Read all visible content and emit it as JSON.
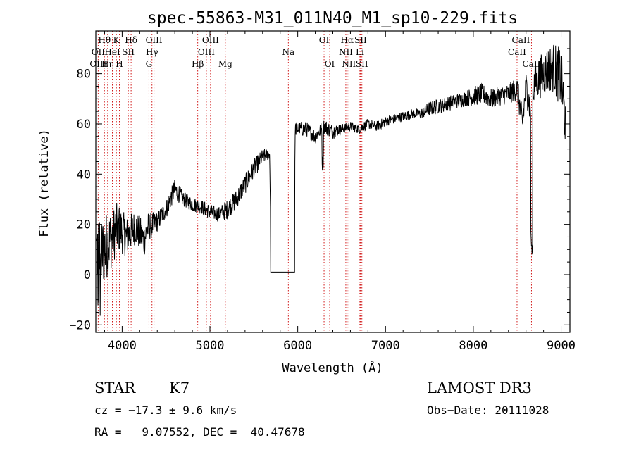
{
  "colors": {
    "spectrum": "#000000",
    "line_marker": "#cc0000",
    "axes": "#000000"
  },
  "chart_data": {
    "type": "line",
    "title": "spec-55863-M31_011N40_M1_sp10-229.fits",
    "xlabel": "Wavelength (Å)",
    "ylabel": "Flux (relative)",
    "xlim": [
      3700,
      9100
    ],
    "ylim": [
      -23,
      97
    ],
    "xticks": [
      4000,
      5000,
      6000,
      7000,
      8000,
      9000
    ],
    "yticks": [
      -20,
      0,
      20,
      40,
      60,
      80
    ],
    "grid": false,
    "spectrum_knots": [
      [
        3700,
        10,
        14
      ],
      [
        3760,
        8,
        15
      ],
      [
        3850,
        13,
        13
      ],
      [
        3950,
        19,
        10
      ],
      [
        4050,
        15,
        8
      ],
      [
        4150,
        19,
        7
      ],
      [
        4250,
        14,
        7
      ],
      [
        4300,
        19,
        6
      ],
      [
        4400,
        21,
        4
      ],
      [
        4500,
        26,
        4
      ],
      [
        4600,
        34,
        4
      ],
      [
        4700,
        30,
        3
      ],
      [
        4800,
        28,
        3
      ],
      [
        4900,
        27,
        3
      ],
      [
        5000,
        25,
        3
      ],
      [
        5100,
        24,
        3
      ],
      [
        5200,
        26,
        4
      ],
      [
        5300,
        30,
        4
      ],
      [
        5400,
        36,
        4
      ],
      [
        5500,
        42,
        4
      ],
      [
        5600,
        47,
        3
      ],
      [
        5680,
        48,
        2
      ],
      [
        5700,
        1,
        0
      ],
      [
        5960,
        1,
        0
      ],
      [
        5970,
        58,
        3
      ],
      [
        6100,
        58,
        3
      ],
      [
        6200,
        55,
        3
      ],
      [
        6300,
        59,
        3
      ],
      [
        6400,
        57,
        3
      ],
      [
        6500,
        58,
        2
      ],
      [
        6600,
        59,
        2
      ],
      [
        6700,
        58,
        2
      ],
      [
        6800,
        60,
        2
      ],
      [
        6900,
        59,
        2
      ],
      [
        7000,
        61,
        2
      ],
      [
        7100,
        62,
        2
      ],
      [
        7200,
        63,
        2
      ],
      [
        7300,
        64,
        2
      ],
      [
        7400,
        64,
        2
      ],
      [
        7500,
        66,
        3
      ],
      [
        7600,
        67,
        3
      ],
      [
        7700,
        68,
        3
      ],
      [
        7800,
        69,
        3
      ],
      [
        7900,
        70,
        3
      ],
      [
        8000,
        71,
        4
      ],
      [
        8100,
        72,
        4
      ],
      [
        8200,
        70,
        4
      ],
      [
        8300,
        71,
        4
      ],
      [
        8400,
        72,
        4
      ],
      [
        8500,
        74,
        5
      ],
      [
        8560,
        60,
        6
      ],
      [
        8600,
        75,
        6
      ],
      [
        8650,
        66,
        7
      ],
      [
        8700,
        77,
        8
      ],
      [
        8800,
        80,
        9
      ],
      [
        8900,
        83,
        10
      ],
      [
        9000,
        78,
        12
      ],
      [
        9050,
        60,
        10
      ]
    ],
    "features": [
      {
        "wave": 5700,
        "value": 1,
        "note": "flat gap region"
      },
      {
        "wave": 8665,
        "value": 8,
        "note": "CaII dip"
      },
      {
        "wave": 6280,
        "value": 42,
        "note": "OI dip"
      }
    ],
    "spectral_lines": [
      {
        "label": "Hθ",
        "wave": 3798,
        "row": 0
      },
      {
        "label": "OII",
        "wave": 3727,
        "row": 1
      },
      {
        "label": "OIII",
        "wave": 3727,
        "row": 2
      },
      {
        "label": "Hη",
        "wave": 3835,
        "row": 2
      },
      {
        "label": "K",
        "wave": 3934,
        "row": 0
      },
      {
        "label": "HeI",
        "wave": 3889,
        "row": 1
      },
      {
        "label": "H",
        "wave": 3969,
        "row": 2
      },
      {
        "label": "SII",
        "wave": 4070,
        "row": 1
      },
      {
        "label": "Hδ",
        "wave": 4102,
        "row": 0
      },
      {
        "label": "OIII",
        "wave": 4363,
        "row": 0
      },
      {
        "label": "Hγ",
        "wave": 4340,
        "row": 1
      },
      {
        "label": "G",
        "wave": 4305,
        "row": 2
      },
      {
        "label": "Hβ",
        "wave": 4861,
        "row": 2
      },
      {
        "label": "OIII",
        "wave": 5007,
        "row": 0
      },
      {
        "label": "OIII",
        "wave": 4959,
        "row": 1
      },
      {
        "label": "Mg",
        "wave": 5175,
        "row": 2
      },
      {
        "label": "Na",
        "wave": 5893,
        "row": 1
      },
      {
        "label": "OI",
        "wave": 6300,
        "row": 0
      },
      {
        "label": "OI",
        "wave": 6364,
        "row": 2
      },
      {
        "label": "Hα",
        "wave": 6563,
        "row": 0
      },
      {
        "label": "NII",
        "wave": 6548,
        "row": 1
      },
      {
        "label": "NII",
        "wave": 6583,
        "row": 2
      },
      {
        "label": "SII",
        "wave": 6716,
        "row": 0
      },
      {
        "label": "Li",
        "wave": 6708,
        "row": 1
      },
      {
        "label": "SII",
        "wave": 6731,
        "row": 2
      },
      {
        "label": "CaII",
        "wave": 8542,
        "row": 0
      },
      {
        "label": "CaII",
        "wave": 8498,
        "row": 1
      },
      {
        "label": "CaII",
        "wave": 8662,
        "row": 2
      }
    ]
  },
  "info": {
    "class_label": "STAR",
    "subclass": "K7",
    "survey": "LAMOST DR3",
    "cz": "cz = −17.3 ± 9.6 km/s",
    "obs_date": "Obs−Date: 20111028",
    "coords": "RA =   9.07552, DEC =  40.47678"
  }
}
